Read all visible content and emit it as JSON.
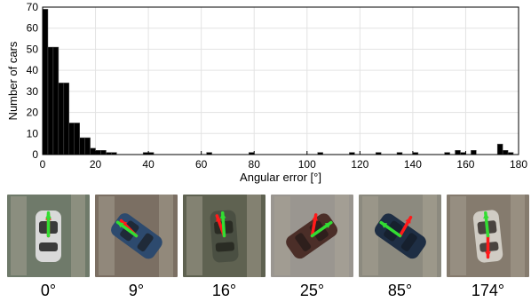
{
  "chart_data": {
    "type": "bar",
    "xlabel": "Angular error [°]",
    "ylabel": "Number of cars",
    "xlim": [
      0,
      180
    ],
    "ylim": [
      0,
      70
    ],
    "bin_width": 2,
    "x_ticks": [
      "0",
      "20",
      "40",
      "60",
      "80",
      "100",
      "120",
      "140",
      "160",
      "180"
    ],
    "y_ticks": [
      "0",
      "10",
      "20",
      "30",
      "40",
      "50",
      "60",
      "70"
    ],
    "grid": true,
    "legend": "none",
    "bar_color": "#000000",
    "bins": [
      {
        "x": 0,
        "value": 69
      },
      {
        "x": 2,
        "value": 51
      },
      {
        "x": 4,
        "value": 51
      },
      {
        "x": 6,
        "value": 34
      },
      {
        "x": 8,
        "value": 34
      },
      {
        "x": 10,
        "value": 15
      },
      {
        "x": 12,
        "value": 15
      },
      {
        "x": 14,
        "value": 8
      },
      {
        "x": 16,
        "value": 8
      },
      {
        "x": 18,
        "value": 3
      },
      {
        "x": 20,
        "value": 2
      },
      {
        "x": 22,
        "value": 2
      },
      {
        "x": 24,
        "value": 1
      },
      {
        "x": 26,
        "value": 1
      },
      {
        "x": 30,
        "value": 0
      },
      {
        "x": 38,
        "value": 1
      },
      {
        "x": 40,
        "value": 1
      },
      {
        "x": 62,
        "value": 1
      },
      {
        "x": 78,
        "value": 1
      },
      {
        "x": 104,
        "value": 1
      },
      {
        "x": 116,
        "value": 1
      },
      {
        "x": 126,
        "value": 1
      },
      {
        "x": 134,
        "value": 1
      },
      {
        "x": 140,
        "value": 1
      },
      {
        "x": 152,
        "value": 1
      },
      {
        "x": 156,
        "value": 2
      },
      {
        "x": 158,
        "value": 1
      },
      {
        "x": 162,
        "value": 2
      },
      {
        "x": 172,
        "value": 5
      },
      {
        "x": 174,
        "value": 2
      },
      {
        "x": 176,
        "value": 1
      }
    ]
  },
  "examples": [
    {
      "label": "0°",
      "bg": "#6f7a6a",
      "car": "#d9d9d9",
      "window": "#3a3a3a",
      "red": 90,
      "green": 90
    },
    {
      "label": "9°",
      "bg": "#7b6f63",
      "car": "#2d4a6e",
      "window": "#1f2a38",
      "red": 135,
      "green": 144
    },
    {
      "label": "16°",
      "bg": "#5f6251",
      "car": "#4a4f42",
      "window": "#2a2c24",
      "red": 110,
      "green": 94
    },
    {
      "label": "25°",
      "bg": "#9a9690",
      "car": "#4b2e28",
      "window": "#2e1f1c",
      "red": 80,
      "green": 35
    },
    {
      "label": "85°",
      "bg": "#8c8a7f",
      "car": "#1e2e44",
      "window": "#16202e",
      "red": 60,
      "green": 145
    },
    {
      "label": "174°",
      "bg": "#857b6e",
      "car": "#d0ccc4",
      "window": "#4a4440",
      "red": 270,
      "green": 96
    }
  ],
  "arrow_colors": {
    "red": "#ff1a1a",
    "green": "#33dd33"
  }
}
